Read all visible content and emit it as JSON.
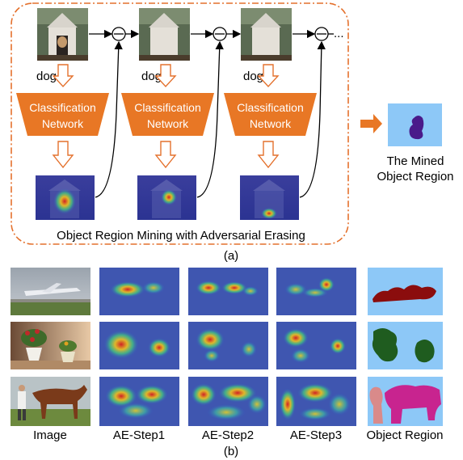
{
  "panel_a": {
    "frame_caption": "Object Region Mining with Adversarial Erasing",
    "label": "(a)",
    "steps": [
      {
        "class_text": "dog",
        "network_label_1": "Classification",
        "network_label_2": "Network"
      },
      {
        "class_text": "dog",
        "network_label_1": "Classification",
        "network_label_2": "Network"
      },
      {
        "class_text": "dog",
        "network_label_1": "Classification",
        "network_label_2": "Network"
      }
    ],
    "ellipsis": "...",
    "result_label_1": "The Mined",
    "result_label_2": "Object Region"
  },
  "panel_b": {
    "label": "(b)",
    "columns": [
      "Image",
      "AE-Step1",
      "AE-Step2",
      "AE-Step3",
      "Object Region"
    ],
    "rows": [
      "airplane",
      "potted-plant",
      "horse"
    ]
  },
  "colors": {
    "frame": "#e4712d",
    "network_fill": "#e87725",
    "arrow_outline": "#e4712d",
    "region_background": "#8dc8f7",
    "dog_region": "#4a1a8a",
    "airplane_region": "#8b0d0d",
    "plant_region": "#1f5c1f",
    "horse_region": "#c8248f",
    "person_region": "#d98a8a",
    "heatmap_base": "#253399"
  }
}
